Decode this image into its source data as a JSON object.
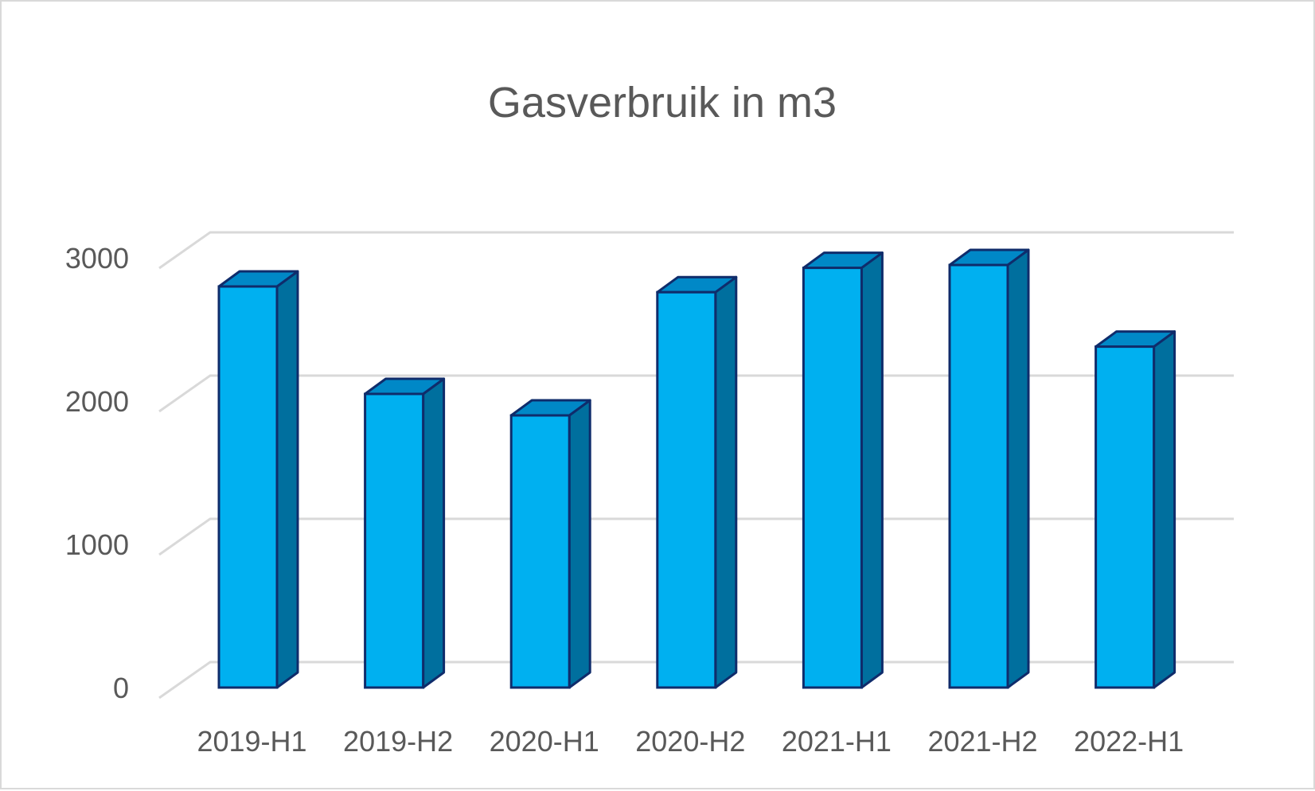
{
  "chart_data": {
    "type": "bar",
    "title": "Gasverbruik in m3",
    "xlabel": "",
    "ylabel": "",
    "categories": [
      "2019-H1",
      "2019-H2",
      "2020-H1",
      "2020-H2",
      "2021-H1",
      "2021-H2",
      "2022-H1"
    ],
    "values": [
      2800,
      2050,
      1900,
      2760,
      2930,
      2950,
      2380
    ],
    "ylim": [
      0,
      3000
    ],
    "yticks": [
      "0",
      "1000",
      "2000",
      "3000"
    ],
    "grid": true,
    "legend": "none",
    "style": "3d-column",
    "colors": {
      "bar_front": "#00b0f0",
      "bar_side": "#006f9e",
      "bar_top": "#0088c7",
      "bar_outline": "#0f2c6b",
      "grid": "#d9d9d9",
      "text": "#595959"
    }
  }
}
